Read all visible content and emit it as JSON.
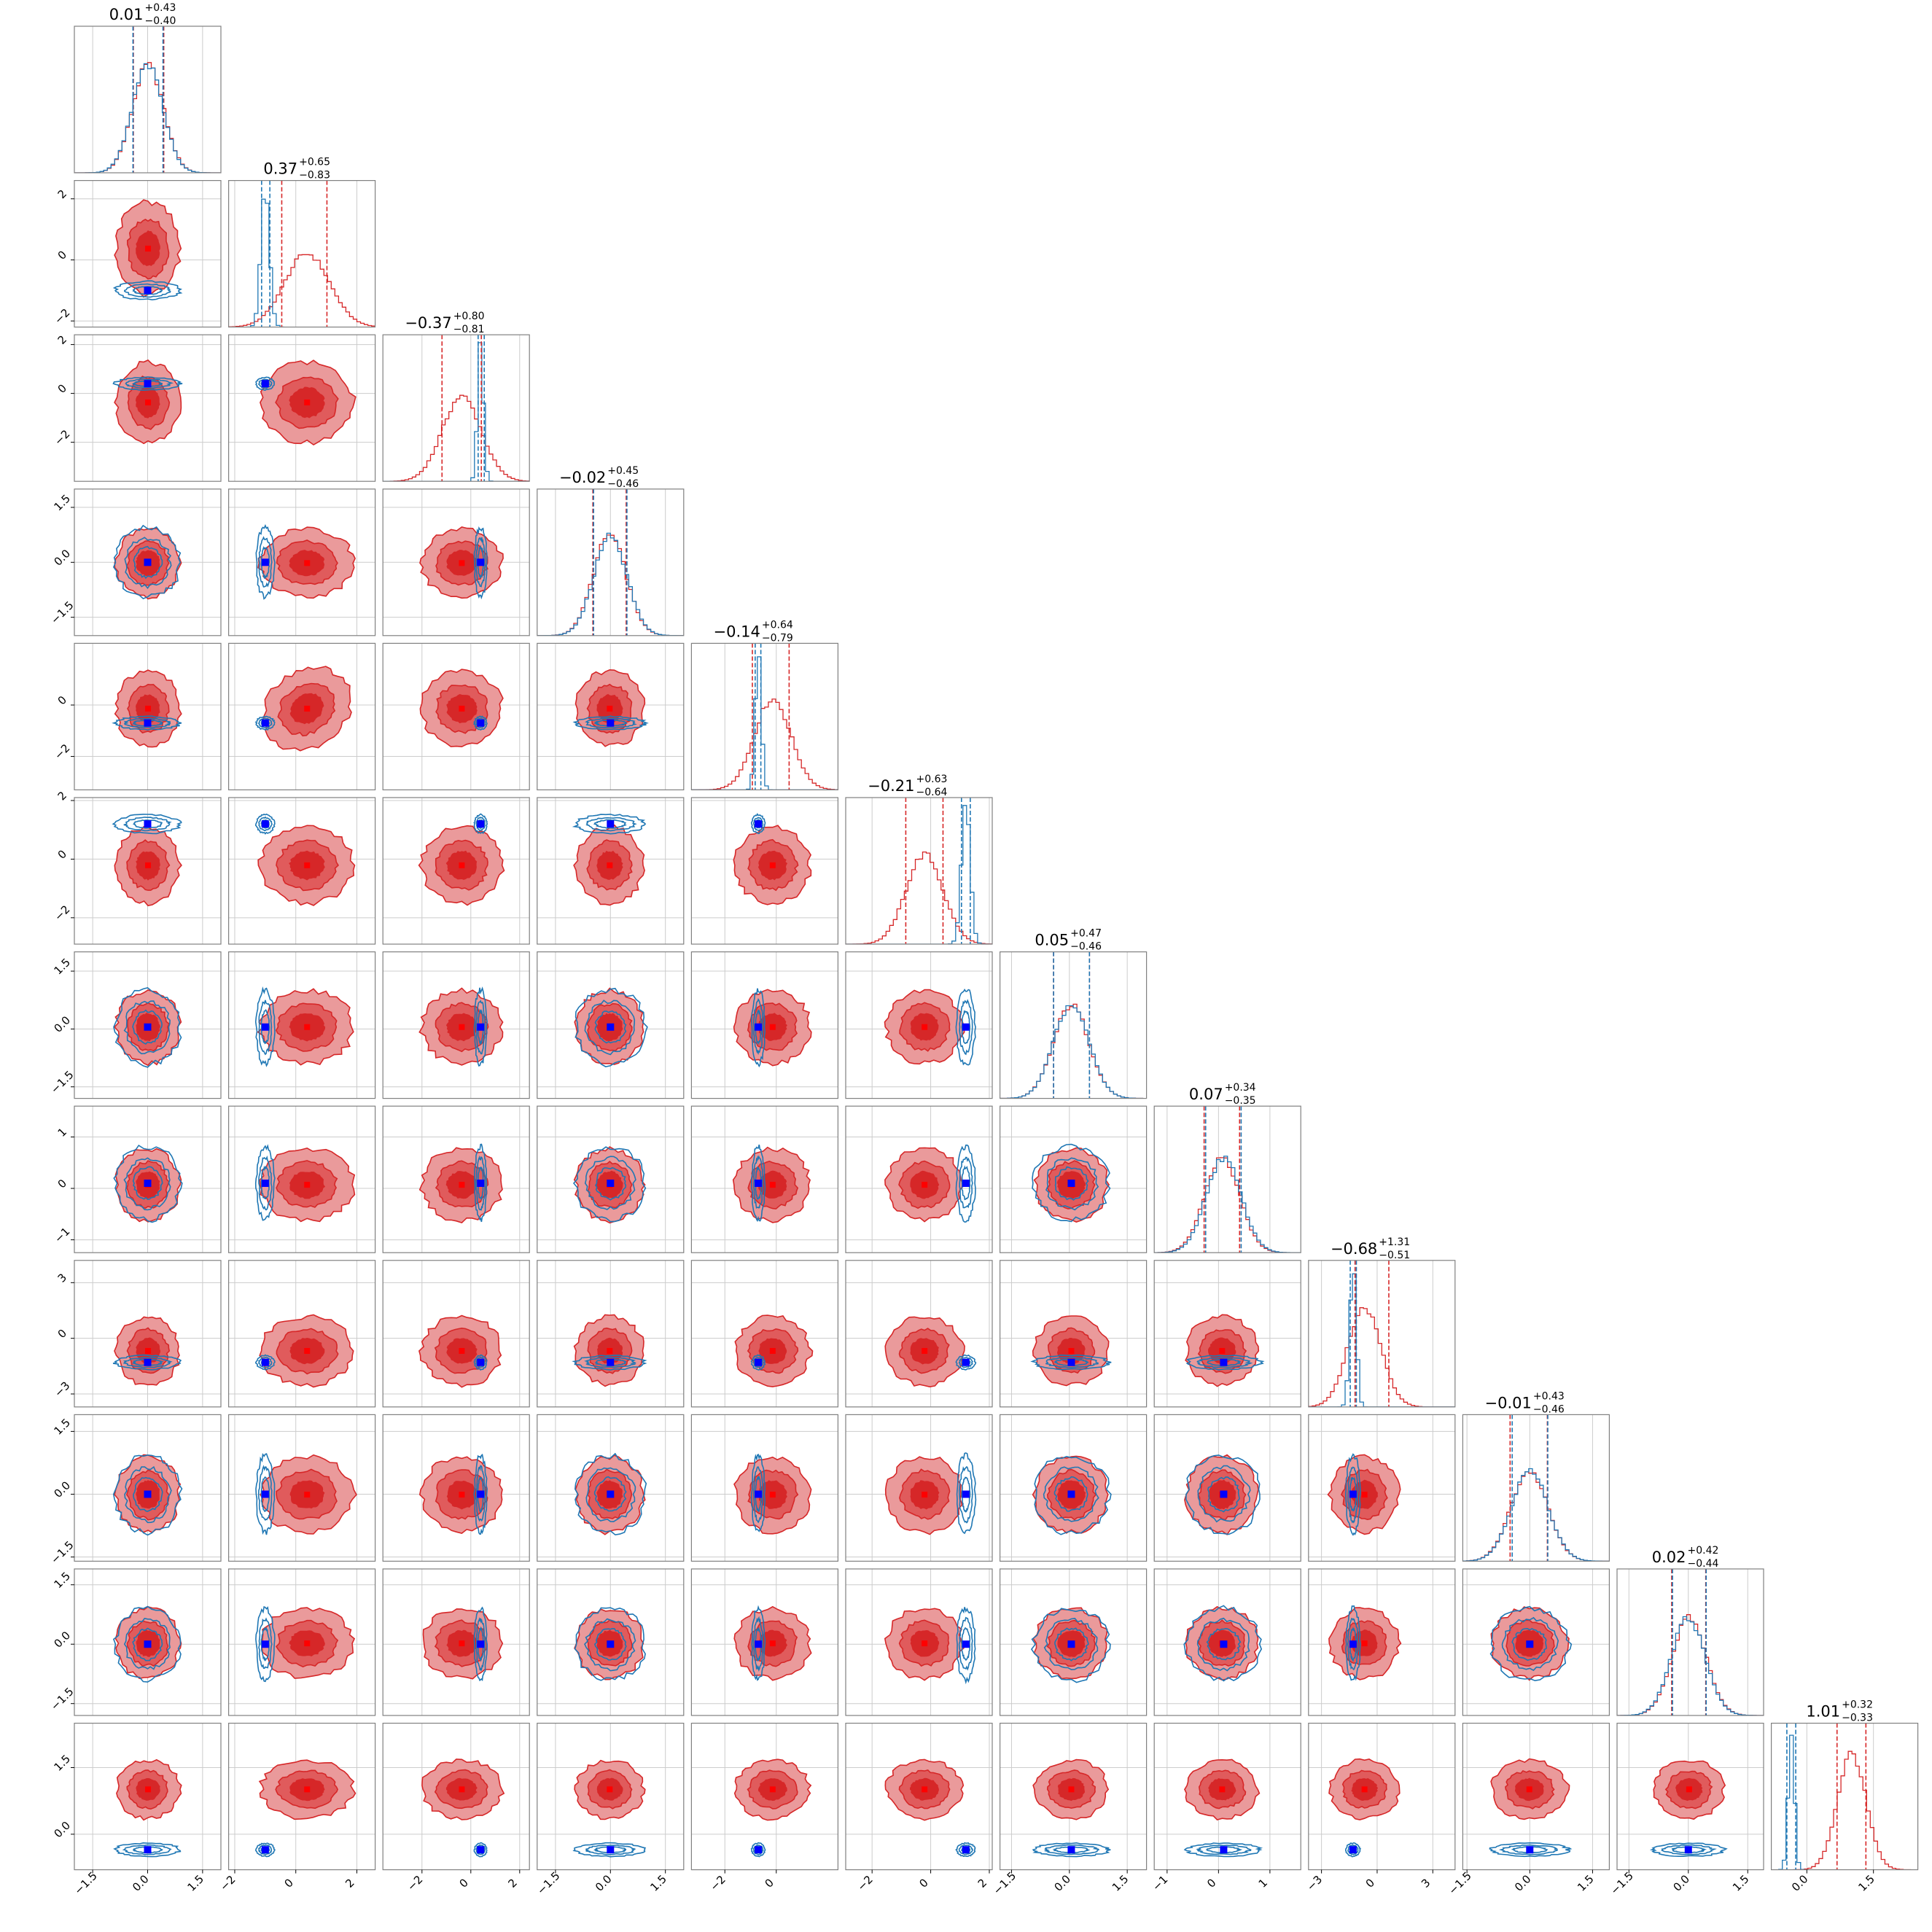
{
  "colors": {
    "posterior_a": "#d62728",
    "posterior_b": "#1f77b4",
    "truth_marker": "#0000ff",
    "grid": "#cccccc",
    "frame": "#808080"
  },
  "chart_data": {
    "type": "corner",
    "n_params": 12,
    "grid": true,
    "titles": [
      {
        "median": "0.01",
        "plus": "+0.43",
        "minus": "−0.40"
      },
      {
        "median": "0.37",
        "plus": "+0.65",
        "minus": "−0.83"
      },
      {
        "median": "−0.37",
        "plus": "+0.80",
        "minus": "−0.81"
      },
      {
        "median": "−0.02",
        "plus": "+0.45",
        "minus": "−0.46"
      },
      {
        "median": "−0.14",
        "plus": "+0.64",
        "minus": "−0.79"
      },
      {
        "median": "−0.21",
        "plus": "+0.63",
        "minus": "−0.64"
      },
      {
        "median": "0.05",
        "plus": "+0.47",
        "minus": "−0.46"
      },
      {
        "median": "0.07",
        "plus": "+0.34",
        "minus": "−0.35"
      },
      {
        "median": "−0.68",
        "plus": "+1.31",
        "minus": "−0.51"
      },
      {
        "median": "−0.01",
        "plus": "+0.43",
        "minus": "−0.46"
      },
      {
        "median": "0.02",
        "plus": "+0.42",
        "minus": "−0.44"
      },
      {
        "median": "1.01",
        "plus": "+0.32",
        "minus": "−0.33"
      }
    ],
    "axes": [
      {
        "range": [
          -2.0,
          2.0
        ],
        "ticks": [
          -1.5,
          0.0,
          1.5
        ],
        "tick_labels": [
          "−1.5",
          "0.0",
          "1.5"
        ]
      },
      {
        "range": [
          -2.2,
          2.6
        ],
        "ticks": [
          -2,
          0,
          2
        ],
        "tick_labels": [
          "−2",
          "0",
          "2"
        ]
      },
      {
        "range": [
          -3.6,
          2.4
        ],
        "ticks": [
          -2,
          0,
          2
        ],
        "tick_labels": [
          "−2",
          "0",
          "2"
        ]
      },
      {
        "range": [
          -2.0,
          2.0
        ],
        "ticks": [
          -1.5,
          0.0,
          1.5
        ],
        "tick_labels": [
          "−1.5",
          "0.0",
          "1.5"
        ]
      },
      {
        "range": [
          -3.3,
          2.4
        ],
        "ticks": [
          -2,
          0
        ],
        "tick_labels": [
          "−2",
          "0"
        ]
      },
      {
        "range": [
          -2.9,
          2.1
        ],
        "ticks": [
          -2,
          0,
          2
        ],
        "tick_labels": [
          "−2",
          "0",
          "2"
        ]
      },
      {
        "range": [
          -1.8,
          2.0
        ],
        "ticks": [
          -1.5,
          0.0,
          1.5
        ],
        "tick_labels": [
          "−1.5",
          "0.0",
          "1.5"
        ]
      },
      {
        "range": [
          -1.25,
          1.6
        ],
        "ticks": [
          -1,
          0,
          1
        ],
        "tick_labels": [
          "−1",
          "0",
          "1"
        ]
      },
      {
        "range": [
          -3.7,
          4.2
        ],
        "ticks": [
          -3,
          0,
          3
        ],
        "tick_labels": [
          "−3",
          "0",
          "3"
        ]
      },
      {
        "range": [
          -1.6,
          1.9
        ],
        "ticks": [
          -1.5,
          0.0,
          1.5
        ],
        "tick_labels": [
          "−1.5",
          "0.0",
          "1.5"
        ]
      },
      {
        "range": [
          -1.8,
          1.9
        ],
        "ticks": [
          -1.5,
          0.0,
          1.5
        ],
        "tick_labels": [
          "−1.5",
          "0.0",
          "1.5"
        ]
      },
      {
        "range": [
          -0.8,
          2.5
        ],
        "ticks": [
          0.0,
          1.5
        ],
        "tick_labels": [
          "0.0",
          "1.5"
        ]
      }
    ],
    "truth": [
      0.0,
      -1.0,
      0.4,
      0.0,
      -0.7,
      1.2,
      0.05,
      0.1,
      -1.3,
      0.0,
      0.0,
      -0.35
    ],
    "series": [
      {
        "color": "#d62728",
        "filled": true,
        "mean": [
          0.01,
          0.37,
          -0.37,
          -0.02,
          -0.14,
          -0.21,
          0.05,
          0.07,
          -0.68,
          -0.01,
          0.02,
          1.01
        ],
        "sd": [
          0.42,
          0.74,
          0.8,
          0.45,
          0.71,
          0.63,
          0.46,
          0.34,
          0.9,
          0.44,
          0.43,
          0.32
        ],
        "quantiles": [
          [
            -0.39,
            0.44
          ],
          [
            -0.46,
            1.02
          ],
          [
            -1.18,
            0.43
          ],
          [
            -0.48,
            0.43
          ],
          [
            -0.93,
            0.5
          ],
          [
            -0.85,
            0.42
          ],
          [
            -0.41,
            0.52
          ],
          [
            -0.28,
            0.41
          ],
          [
            -1.19,
            0.63
          ],
          [
            -0.47,
            0.42
          ],
          [
            -0.42,
            0.44
          ],
          [
            0.68,
            1.33
          ]
        ],
        "correlated_pairs": [
          [
            1,
            4,
            0.55
          ]
        ]
      },
      {
        "color": "#1f77b4",
        "filled": false,
        "mean": [
          0.0,
          -1.0,
          0.4,
          0.0,
          -0.7,
          1.2,
          0.05,
          0.1,
          -1.3,
          0.0,
          0.0,
          -0.35
        ],
        "sd": [
          0.42,
          0.14,
          0.12,
          0.45,
          0.12,
          0.15,
          0.46,
          0.34,
          0.18,
          0.44,
          0.43,
          0.07
        ],
        "quantiles": [
          [
            -0.4,
            0.42
          ],
          [
            -1.12,
            -0.85
          ],
          [
            0.3,
            0.55
          ],
          [
            -0.46,
            0.45
          ],
          [
            -0.82,
            -0.6
          ],
          [
            1.05,
            1.35
          ],
          [
            -0.41,
            0.52
          ],
          [
            -0.25,
            0.44
          ],
          [
            -1.45,
            -1.12
          ],
          [
            -0.42,
            0.43
          ],
          [
            -0.4,
            0.45
          ],
          [
            -0.45,
            -0.25
          ]
        ]
      }
    ]
  }
}
